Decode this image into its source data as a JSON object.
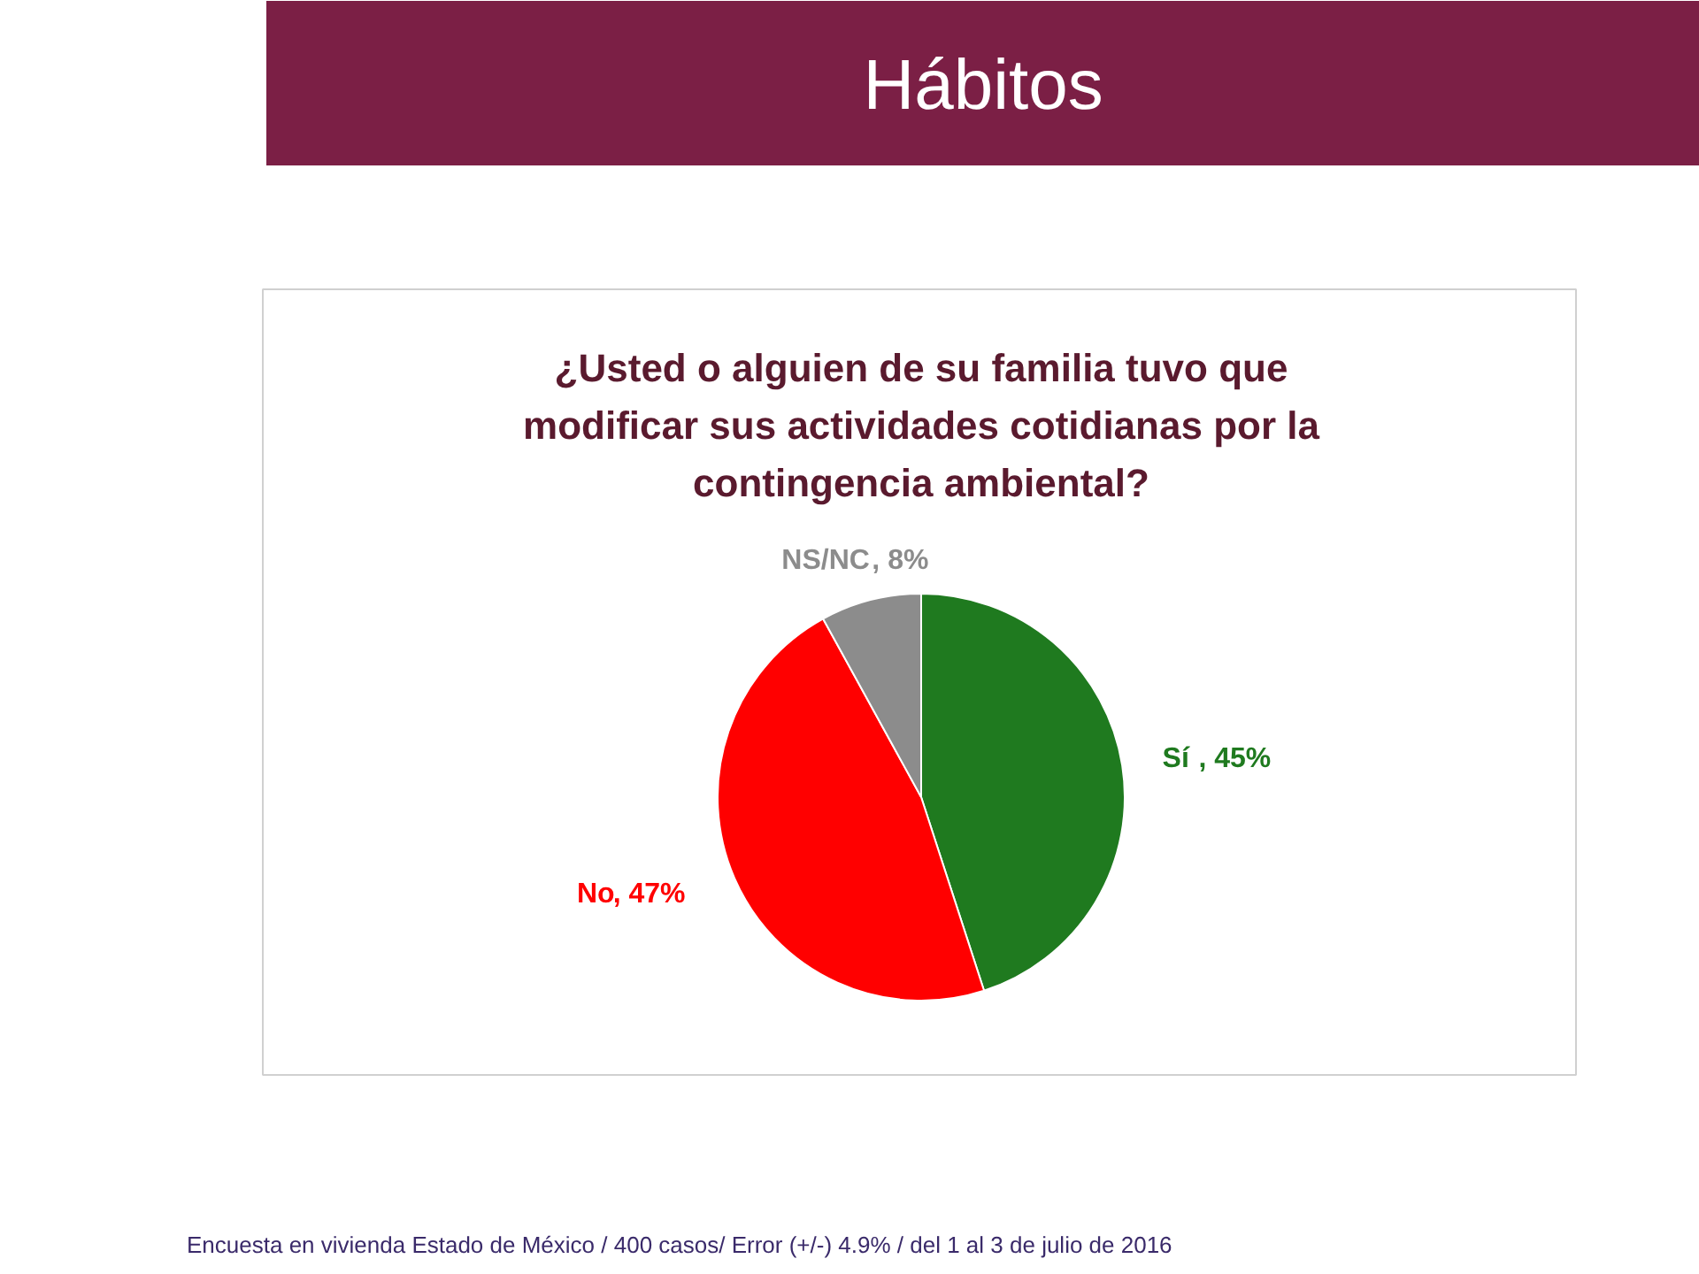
{
  "chart_data": {
    "type": "pie",
    "title": "Hábitos",
    "subtitle": "¿Usted o alguien de su familia tuvo que\nmodificar sus actividades cotidianas por la\ncontingencia ambiental?",
    "categories": [
      "Sí",
      "No",
      "NS/NC"
    ],
    "values": [
      45,
      47,
      8
    ],
    "colors": [
      "#1f7a1f",
      "#ff0000",
      "#8c8c8c"
    ],
    "value_labels": [
      ", 45%",
      ", 47%",
      ", 8%"
    ],
    "legend": false,
    "annotations": [
      "Encuesta en vivienda Estado de México / 400 casos/ Error (+/-) 4.9%  / del 1 al 3 de julio de 2016"
    ]
  }
}
